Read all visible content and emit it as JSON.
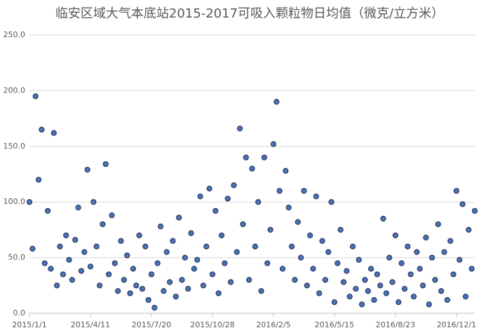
{
  "chart_data": {
    "type": "scatter",
    "title": "临安区域大气本底站2015-2017可吸入颗粒物日均值（微克/立方米）",
    "x": [
      "2015/1/1",
      "2015/1/6",
      "2015/1/11",
      "2015/1/16",
      "2015/1/21",
      "2015/1/26",
      "2015/1/31",
      "2015/2/5",
      "2015/2/10",
      "2015/2/15",
      "2015/2/20",
      "2015/2/25",
      "2015/3/2",
      "2015/3/7",
      "2015/3/12",
      "2015/3/17",
      "2015/3/22",
      "2015/3/27",
      "2015/4/1",
      "2015/4/6",
      "2015/4/11",
      "2015/4/16",
      "2015/4/21",
      "2015/4/26",
      "2015/5/1",
      "2015/5/6",
      "2015/5/11",
      "2015/5/16",
      "2015/5/21",
      "2015/5/26",
      "2015/5/31",
      "2015/6/5",
      "2015/6/10",
      "2015/6/15",
      "2015/6/20",
      "2015/6/25",
      "2015/6/30",
      "2015/7/5",
      "2015/7/10",
      "2015/7/15",
      "2015/7/20",
      "2015/7/25",
      "2015/7/30",
      "2015/8/4",
      "2015/8/9",
      "2015/8/14",
      "2015/8/19",
      "2015/8/24",
      "2015/8/29",
      "2015/9/3",
      "2015/9/8",
      "2015/9/13",
      "2015/9/18",
      "2015/9/23",
      "2015/9/28",
      "2015/10/3",
      "2015/10/8",
      "2015/10/13",
      "2015/10/18",
      "2015/10/23",
      "2015/10/28",
      "2015/11/2",
      "2015/11/7",
      "2015/11/12",
      "2015/11/17",
      "2015/11/22",
      "2015/11/27",
      "2015/12/2",
      "2015/12/7",
      "2015/12/12",
      "2015/12/17",
      "2015/12/22",
      "2015/12/27",
      "2016/1/1",
      "2016/1/6",
      "2016/1/11",
      "2016/1/16",
      "2016/1/21",
      "2016/1/26",
      "2016/1/31",
      "2016/2/5",
      "2016/2/10",
      "2016/2/15",
      "2016/2/20",
      "2016/2/25",
      "2016/3/1",
      "2016/3/6",
      "2016/3/11",
      "2016/3/16",
      "2016/3/21",
      "2016/3/26",
      "2016/3/31",
      "2016/4/5",
      "2016/4/10",
      "2016/4/15",
      "2016/4/20",
      "2016/4/25",
      "2016/4/30",
      "2016/5/5",
      "2016/5/10",
      "2016/5/15",
      "2016/5/20",
      "2016/5/25",
      "2016/5/30",
      "2016/6/4",
      "2016/6/9",
      "2016/6/14",
      "2016/6/19",
      "2016/6/24",
      "2016/6/29",
      "2016/7/4",
      "2016/7/9",
      "2016/7/14",
      "2016/7/19",
      "2016/7/24",
      "2016/7/29",
      "2016/8/3",
      "2016/8/8",
      "2016/8/13",
      "2016/8/18",
      "2016/8/23",
      "2016/8/28",
      "2016/9/2",
      "2016/9/7",
      "2016/9/12",
      "2016/9/17",
      "2016/9/22",
      "2016/9/27",
      "2016/10/2",
      "2016/10/7",
      "2016/10/12",
      "2016/10/17",
      "2016/10/22",
      "2016/10/27",
      "2016/11/1",
      "2016/11/6",
      "2016/11/11",
      "2016/11/16",
      "2016/11/21",
      "2016/11/26",
      "2016/12/1",
      "2016/12/6",
      "2016/12/11",
      "2016/12/16",
      "2016/12/21",
      "2016/12/26",
      "2016/12/31"
    ],
    "values": [
      100,
      58,
      195,
      120,
      165,
      45,
      92,
      40,
      162,
      25,
      60,
      35,
      70,
      48,
      30,
      66,
      95,
      38,
      55,
      129,
      42,
      100,
      60,
      25,
      80,
      134,
      35,
      88,
      45,
      20,
      65,
      30,
      52,
      18,
      40,
      25,
      70,
      22,
      60,
      12,
      35,
      5,
      45,
      78,
      20,
      55,
      28,
      65,
      15,
      86,
      30,
      50,
      22,
      72,
      40,
      48,
      105,
      25,
      60,
      112,
      35,
      92,
      18,
      70,
      45,
      103,
      28,
      115,
      55,
      166,
      80,
      140,
      30,
      130,
      60,
      100,
      20,
      140,
      45,
      75,
      152,
      190,
      110,
      40,
      128,
      95,
      60,
      30,
      82,
      50,
      110,
      25,
      70,
      40,
      105,
      18,
      65,
      30,
      55,
      100,
      10,
      45,
      75,
      28,
      38,
      15,
      60,
      22,
      48,
      8,
      30,
      20,
      40,
      12,
      35,
      25,
      85,
      18,
      50,
      28,
      70,
      10,
      45,
      22,
      60,
      35,
      15,
      55,
      40,
      25,
      68,
      8,
      50,
      30,
      80,
      20,
      55,
      12,
      65,
      35,
      110,
      48,
      98,
      15,
      75,
      40,
      92
    ],
    "color": "#4a72b8",
    "xlim": [
      "2015/1/1",
      "2016/12/31"
    ],
    "xticks": [
      "2015/1/1",
      "2015/4/11",
      "2015/7/20",
      "2015/10/28",
      "2016/2/5",
      "2016/5/15",
      "2016/8/23",
      "2016/12/1"
    ],
    "ylim": [
      0,
      250
    ],
    "yticks": [
      {
        "value": 0,
        "label": "0.0"
      },
      {
        "value": 50,
        "label": "50.0"
      },
      {
        "value": 100,
        "label": "100.0"
      },
      {
        "value": 150,
        "label": "150.0"
      },
      {
        "value": 200,
        "label": "200.0"
      },
      {
        "value": 250,
        "label": "250.0"
      }
    ],
    "grid": true
  }
}
